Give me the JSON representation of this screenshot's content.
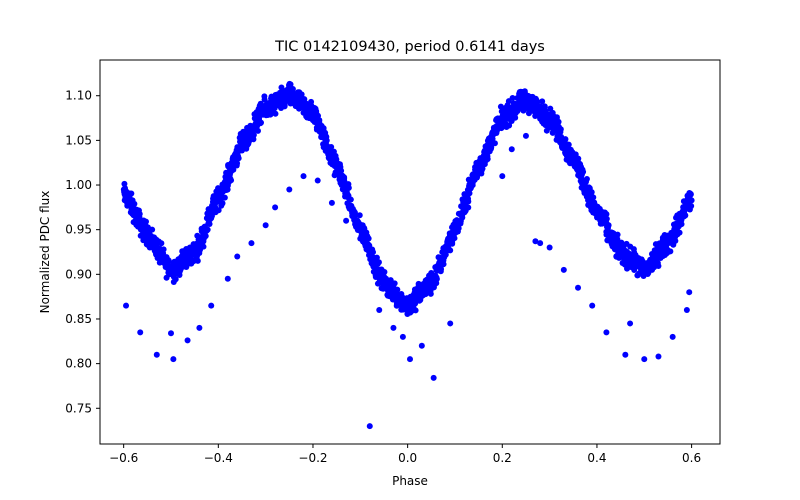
{
  "chart_data": {
    "type": "scatter",
    "title": "TIC 0142109430, period 0.6141 days",
    "xlabel": "Phase",
    "ylabel": "Normalized PDC flux",
    "xlim": [
      -0.65,
      0.66
    ],
    "ylim": [
      0.71,
      1.14
    ],
    "xticks": [
      -0.6,
      -0.4,
      -0.2,
      0.0,
      0.2,
      0.4,
      0.6
    ],
    "xtick_labels": [
      "−0.6",
      "−0.4",
      "−0.2",
      "0.0",
      "0.2",
      "0.4",
      "0.6"
    ],
    "yticks": [
      0.75,
      0.8,
      0.85,
      0.9,
      0.95,
      1.0,
      1.05,
      1.1
    ],
    "ytick_labels": [
      "0.75",
      "0.80",
      "0.85",
      "0.90",
      "0.95",
      "1.00",
      "1.05",
      "1.10"
    ],
    "grid": false,
    "marker_color": "#0000ff",
    "model": {
      "description_points_phase": [
        -0.6,
        -0.55,
        -0.5,
        -0.45,
        -0.4,
        -0.35,
        -0.3,
        -0.25,
        -0.2,
        -0.15,
        -0.1,
        -0.05,
        0.0,
        0.05,
        0.1,
        0.15,
        0.2,
        0.25,
        0.3,
        0.35,
        0.4,
        0.45,
        0.5,
        0.55,
        0.6
      ],
      "flux": [
        0.99,
        0.945,
        0.905,
        0.925,
        0.985,
        1.045,
        1.085,
        1.1,
        1.08,
        1.02,
        0.95,
        0.89,
        0.865,
        0.89,
        0.95,
        1.02,
        1.075,
        1.095,
        1.075,
        1.03,
        0.97,
        0.925,
        0.905,
        0.935,
        0.985
      ]
    },
    "outliers": {
      "x": [
        -0.595,
        -0.565,
        -0.53,
        -0.5,
        -0.495,
        -0.465,
        -0.44,
        -0.415,
        -0.38,
        -0.36,
        -0.33,
        -0.3,
        -0.28,
        -0.25,
        -0.22,
        -0.19,
        -0.16,
        -0.13,
        -0.1,
        -0.08,
        -0.06,
        -0.03,
        -0.01,
        0.005,
        0.03,
        0.055,
        0.09,
        0.2,
        0.22,
        0.25,
        0.27,
        0.28,
        0.3,
        0.33,
        0.36,
        0.39,
        0.42,
        0.46,
        0.47,
        0.5,
        0.53,
        0.56,
        0.59,
        0.595
      ],
      "y": [
        0.865,
        0.835,
        0.81,
        0.834,
        0.805,
        0.826,
        0.84,
        0.865,
        0.895,
        0.92,
        0.935,
        0.955,
        0.975,
        0.995,
        1.01,
        1.005,
        0.98,
        0.96,
        0.94,
        0.73,
        0.86,
        0.84,
        0.83,
        0.805,
        0.82,
        0.784,
        0.845,
        1.01,
        1.04,
        1.055,
        0.937,
        0.935,
        0.93,
        0.905,
        0.885,
        0.865,
        0.835,
        0.81,
        0.845,
        0.805,
        0.808,
        0.83,
        0.86,
        0.88
      ]
    }
  }
}
